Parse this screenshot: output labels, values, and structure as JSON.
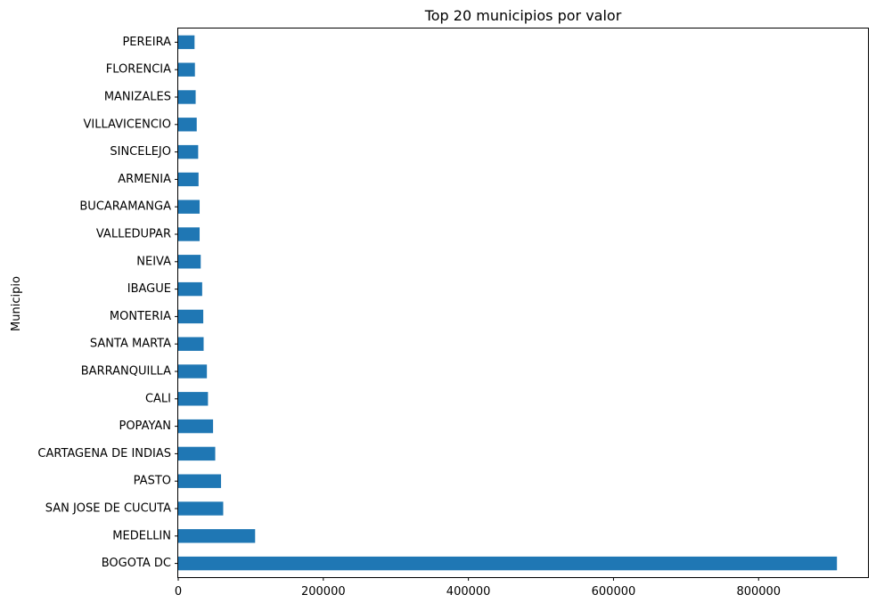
{
  "chart_data": {
    "type": "bar",
    "orientation": "horizontal",
    "title": "Top 20 municipios por valor",
    "xlabel": "",
    "ylabel": "Municipio",
    "categories": [
      "BOGOTA DC",
      "MEDELLIN",
      "SAN JOSE DE CUCUTA",
      "PASTO",
      "CARTAGENA DE INDIAS",
      "POPAYAN",
      "CALI",
      "BARRANQUILLA",
      "SANTA MARTA",
      "MONTERIA",
      "IBAGUE",
      "NEIVA",
      "VALLEDUPAR",
      "BUCARAMANGA",
      "ARMENIA",
      "SINCELEJO",
      "VILLAVICENCIO",
      "MANIZALES",
      "FLORENCIA",
      "PEREIRA"
    ],
    "values": [
      908000,
      106000,
      62000,
      59000,
      51000,
      48000,
      41000,
      39500,
      35000,
      34500,
      33000,
      31000,
      29500,
      29500,
      28000,
      27500,
      25500,
      24000,
      23000,
      22500
    ],
    "xlim": [
      0,
      952000
    ],
    "xticks": [
      0,
      200000,
      400000,
      600000,
      800000
    ],
    "xtick_labels": [
      "0",
      "200000",
      "400000",
      "600000",
      "800000"
    ],
    "grid": false,
    "colors": {
      "bar": "#1f77b4",
      "axis": "#000000"
    }
  }
}
